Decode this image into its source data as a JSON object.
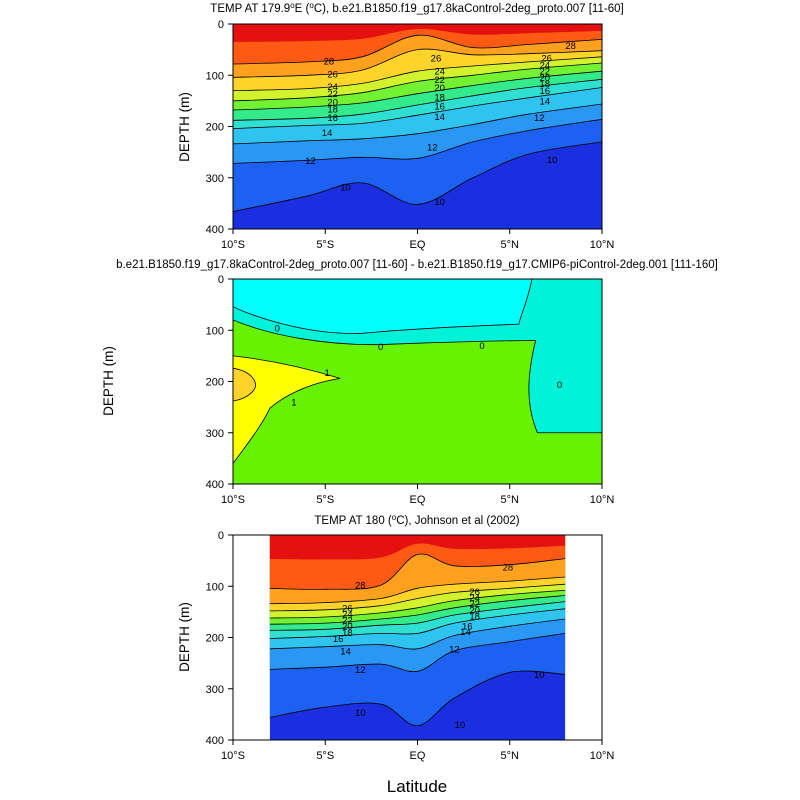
{
  "figure": {
    "xlabel": "Latitude"
  },
  "chart_data": [
    {
      "type": "contour",
      "title_prefix": "TEMP AT 179.9",
      "title_degree": "o",
      "title_mid": "E (",
      "title_unit_degree": "o",
      "title_suffix": "C), b.e21.B1850.f19_g17.8kaControl-2deg_proto.007 [11-60]",
      "ylabel": "DEPTH (m)",
      "x_range": [
        -10,
        10
      ],
      "y_range": [
        0,
        400
      ],
      "x_ticks": [
        "10°S",
        "5°S",
        "EQ",
        "5°N",
        "10°N"
      ],
      "y_ticks": [
        "0",
        "100",
        "200",
        "300",
        "400"
      ],
      "data_extent_lat": [
        -10,
        10
      ],
      "profile_type": "temp",
      "isotherms": [
        {
          "level": 28,
          "x": [
            -10,
            -6,
            -3,
            0,
            3,
            6,
            10
          ],
          "y": [
            78,
            74,
            64,
            22,
            46,
            40,
            30
          ]
        },
        {
          "level": 26,
          "x": [
            -10,
            -6,
            -3,
            0,
            3,
            6,
            10
          ],
          "y": [
            104,
            100,
            90,
            50,
            60,
            58,
            52
          ]
        },
        {
          "level": 24,
          "x": [
            -10,
            -6,
            -3,
            0,
            3,
            6,
            10
          ],
          "y": [
            130,
            126,
            116,
            92,
            82,
            74,
            64
          ]
        },
        {
          "level": 22,
          "x": [
            -10,
            -6,
            -3,
            0,
            3,
            6,
            10
          ],
          "y": [
            150,
            144,
            134,
            112,
            100,
            88,
            76
          ]
        },
        {
          "level": 20,
          "x": [
            -10,
            -6,
            -3,
            0,
            3,
            6,
            10
          ],
          "y": [
            168,
            162,
            154,
            136,
            120,
            106,
            92
          ]
        },
        {
          "level": 18,
          "x": [
            -10,
            -6,
            -3,
            0,
            3,
            6,
            10
          ],
          "y": [
            188,
            184,
            176,
            158,
            140,
            124,
            108
          ]
        },
        {
          "level": 16,
          "x": [
            -10,
            -6,
            -3,
            0,
            3,
            6,
            10
          ],
          "y": [
            204,
            198,
            194,
            178,
            160,
            144,
            124
          ]
        },
        {
          "level": 14,
          "x": [
            -10,
            -6,
            -3,
            0,
            3,
            6,
            10
          ],
          "y": [
            234,
            228,
            224,
            214,
            196,
            176,
            156
          ]
        },
        {
          "level": 12,
          "x": [
            -10,
            -6,
            -3,
            0,
            3,
            6,
            10
          ],
          "y": [
            272,
            266,
            260,
            262,
            230,
            208,
            186
          ]
        },
        {
          "level": 10,
          "x": [
            -10,
            -6,
            -3,
            0,
            3,
            6,
            10
          ],
          "y": [
            366,
            336,
            310,
            352,
            300,
            254,
            230
          ]
        }
      ],
      "contour_labels": [
        {
          "text": "28",
          "x": -4.8,
          "y": 72
        },
        {
          "text": "28",
          "x": 8.3,
          "y": 42
        },
        {
          "text": "26",
          "x": -4.6,
          "y": 98
        },
        {
          "text": "26",
          "x": 1.0,
          "y": 66
        },
        {
          "text": "26",
          "x": 7.0,
          "y": 66
        },
        {
          "text": "24",
          "x": -4.6,
          "y": 122
        },
        {
          "text": "24",
          "x": 1.2,
          "y": 92
        },
        {
          "text": "24",
          "x": 6.9,
          "y": 80
        },
        {
          "text": "22",
          "x": -4.6,
          "y": 136
        },
        {
          "text": "22",
          "x": 1.2,
          "y": 108
        },
        {
          "text": "22",
          "x": 6.9,
          "y": 92
        },
        {
          "text": "20",
          "x": -4.6,
          "y": 152
        },
        {
          "text": "20",
          "x": 1.2,
          "y": 124
        },
        {
          "text": "20",
          "x": 6.9,
          "y": 104
        },
        {
          "text": "18",
          "x": -4.6,
          "y": 166
        },
        {
          "text": "18",
          "x": 1.2,
          "y": 142
        },
        {
          "text": "18",
          "x": 6.9,
          "y": 116
        },
        {
          "text": "16",
          "x": -4.6,
          "y": 182
        },
        {
          "text": "16",
          "x": 1.2,
          "y": 160
        },
        {
          "text": "16",
          "x": 6.9,
          "y": 130
        },
        {
          "text": "14",
          "x": -4.9,
          "y": 212
        },
        {
          "text": "14",
          "x": 1.2,
          "y": 180
        },
        {
          "text": "14",
          "x": 6.9,
          "y": 150
        },
        {
          "text": "12",
          "x": -5.8,
          "y": 266
        },
        {
          "text": "12",
          "x": 0.8,
          "y": 240
        },
        {
          "text": "12",
          "x": 6.6,
          "y": 182
        },
        {
          "text": "10",
          "x": -3.9,
          "y": 318
        },
        {
          "text": "10",
          "x": 1.2,
          "y": 346
        },
        {
          "text": "10",
          "x": 7.3,
          "y": 264
        }
      ]
    },
    {
      "type": "contour",
      "title": "b.e21.B1850.f19_g17.8kaControl-2deg_proto.007 [11-60] - b.e21.B1850.f19_g17.CMIP6-piControl-2deg.001 [111-160]",
      "ylabel": "DEPTH (m)",
      "x_range": [
        -10,
        10
      ],
      "y_range": [
        0,
        400
      ],
      "x_ticks": [
        "10°S",
        "5°S",
        "EQ",
        "5°N",
        "10°N"
      ],
      "y_ticks": [
        "0",
        "100",
        "200",
        "300",
        "400"
      ],
      "data_extent_lat": [
        -10,
        10
      ],
      "profile_type": "anomaly",
      "contour_labels": [
        {
          "text": "0",
          "x": -7.6,
          "y": 96
        },
        {
          "text": "0",
          "x": -2.0,
          "y": 132
        },
        {
          "text": "0",
          "x": 3.5,
          "y": 130
        },
        {
          "text": "0",
          "x": 7.7,
          "y": 206
        },
        {
          "text": "1",
          "x": -4.9,
          "y": 182
        },
        {
          "text": "1",
          "x": -6.7,
          "y": 240
        }
      ]
    },
    {
      "type": "contour",
      "title_prefix": "TEMP AT 180 (",
      "title_degree": "o",
      "title_suffix": "C), Johnson et al (2002)",
      "ylabel": "DEPTH (m)",
      "x_range": [
        -10,
        10
      ],
      "y_range": [
        0,
        400
      ],
      "x_ticks": [
        "10°S",
        "5°S",
        "EQ",
        "5°N",
        "10°N"
      ],
      "y_ticks": [
        "0",
        "100",
        "200",
        "300",
        "400"
      ],
      "data_extent_lat": [
        -8,
        8
      ],
      "profile_type": "temp",
      "isotherms": [
        {
          "level": 28,
          "x": [
            -8,
            -5,
            -2,
            0,
            2,
            5,
            8
          ],
          "y": [
            104,
            106,
            98,
            38,
            60,
            58,
            46
          ]
        },
        {
          "level": 26,
          "x": [
            -8,
            -5,
            -2,
            0,
            2,
            5,
            8
          ],
          "y": [
            134,
            132,
            124,
            104,
            96,
            90,
            82
          ]
        },
        {
          "level": 24,
          "x": [
            -8,
            -5,
            -2,
            0,
            2,
            5,
            8
          ],
          "y": [
            148,
            146,
            138,
            124,
            112,
            104,
            96
          ]
        },
        {
          "level": 22,
          "x": [
            -8,
            -5,
            -2,
            0,
            2,
            5,
            8
          ],
          "y": [
            162,
            160,
            152,
            142,
            128,
            116,
            108
          ]
        },
        {
          "level": 20,
          "x": [
            -8,
            -5,
            -2,
            0,
            2,
            5,
            8
          ],
          "y": [
            174,
            172,
            164,
            156,
            142,
            128,
            118
          ]
        },
        {
          "level": 18,
          "x": [
            -8,
            -5,
            -2,
            0,
            2,
            5,
            8
          ],
          "y": [
            186,
            184,
            176,
            172,
            156,
            142,
            130
          ]
        },
        {
          "level": 16,
          "x": [
            -8,
            -5,
            -2,
            0,
            2,
            5,
            8
          ],
          "y": [
            202,
            198,
            192,
            192,
            172,
            156,
            144
          ]
        },
        {
          "level": 14,
          "x": [
            -8,
            -5,
            -2,
            0,
            2,
            5,
            8
          ],
          "y": [
            222,
            218,
            214,
            222,
            196,
            178,
            164
          ]
        },
        {
          "level": 12,
          "x": [
            -8,
            -5,
            -2,
            0,
            2,
            5,
            8
          ],
          "y": [
            262,
            258,
            252,
            266,
            226,
            208,
            192
          ]
        },
        {
          "level": 10,
          "x": [
            -8,
            -5,
            -2,
            0,
            2,
            5,
            8
          ],
          "y": [
            356,
            336,
            330,
            372,
            318,
            268,
            272
          ]
        }
      ],
      "contour_labels": [
        {
          "text": "28",
          "x": -3.1,
          "y": 98
        },
        {
          "text": "28",
          "x": 4.9,
          "y": 62
        },
        {
          "text": "26",
          "x": -3.8,
          "y": 142
        },
        {
          "text": "26",
          "x": 3.1,
          "y": 110
        },
        {
          "text": "24",
          "x": -3.8,
          "y": 154
        },
        {
          "text": "24",
          "x": 3.1,
          "y": 122
        },
        {
          "text": "22",
          "x": -3.8,
          "y": 166
        },
        {
          "text": "22",
          "x": 3.1,
          "y": 134
        },
        {
          "text": "20",
          "x": -3.8,
          "y": 178
        },
        {
          "text": "20",
          "x": 3.1,
          "y": 146
        },
        {
          "text": "18",
          "x": -3.8,
          "y": 190
        },
        {
          "text": "18",
          "x": 3.1,
          "y": 158
        },
        {
          "text": "16",
          "x": -4.3,
          "y": 202
        },
        {
          "text": "16",
          "x": 2.7,
          "y": 178
        },
        {
          "text": "14",
          "x": -3.9,
          "y": 226
        },
        {
          "text": "14",
          "x": 2.6,
          "y": 188
        },
        {
          "text": "12",
          "x": -3.1,
          "y": 262
        },
        {
          "text": "12",
          "x": 2.0,
          "y": 222
        },
        {
          "text": "10",
          "x": -3.1,
          "y": 346
        },
        {
          "text": "10",
          "x": 2.3,
          "y": 370
        },
        {
          "text": "10",
          "x": 6.6,
          "y": 272
        }
      ]
    }
  ]
}
